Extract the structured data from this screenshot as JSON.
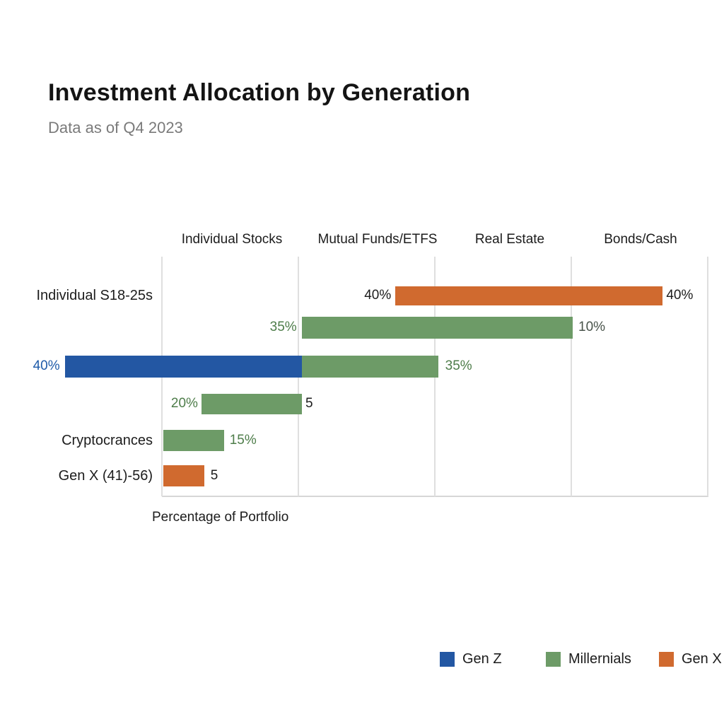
{
  "header": {
    "title": "Investment Allocation by Generation",
    "subtitle": "Data as of Q4 2023"
  },
  "axis": {
    "xlabel": "Percentage of Portfolio"
  },
  "colors": {
    "gen_z_blue": "#2357a3",
    "millennials_green": "#6d9b67",
    "gen_x_orange": "#d06a2f",
    "green_label": "#4e7d4a",
    "blue_label": "#1f5ba9",
    "dark_label": "#1c1c1c",
    "muted_green_label": "#49544b",
    "gridline": "#dfdfdf"
  },
  "legend": {
    "items": [
      {
        "name": "gen-z",
        "label": "Gen Z",
        "color": "#2357a3"
      },
      {
        "name": "millennials",
        "label": "Millernials",
        "color": "#6d9b67"
      },
      {
        "name": "gen-x",
        "label": "Gen X",
        "color": "#d06a2f"
      }
    ]
  },
  "chart_data": {
    "type": "bar",
    "orientation": "horizontal",
    "title": "Investment Allocation by Generation",
    "subtitle": "Data as of Q4 2023",
    "xlabel": "Percentage of Portfolio",
    "grid": true,
    "legend_position": "bottom-right",
    "column_headers": [
      "Individual Stocks",
      "Mutual Funds/ETFS",
      "Real Estate",
      "Bonds/Cash"
    ],
    "legend_entries": [
      "Gen Z",
      "Millernials",
      "Gen X"
    ],
    "axis_units_note": "u is percent of plot width (0-100), gridlines every 25 units; bars do not align to a labeled numeric scale",
    "gridlines_units": [
      0,
      25,
      50,
      75,
      100
    ],
    "rows": [
      {
        "label": "Individual S18-25s",
        "bars": [
          {
            "series": "gen_x",
            "color": "#d06a2f",
            "u0": 42.7,
            "u1": 91.7
          }
        ],
        "value_labels": [
          {
            "text": "40%",
            "u": 42.0,
            "align": "right",
            "color": "#1c1c1c"
          },
          {
            "text": "40%",
            "u": 92.4,
            "align": "left",
            "color": "#1c1c1c"
          }
        ]
      },
      {
        "label": "",
        "bars": [
          {
            "series": "millennials",
            "color": "#6d9b67",
            "u0": 25.6,
            "u1": 75.3
          }
        ],
        "value_labels": [
          {
            "text": "35%",
            "u": 24.7,
            "align": "right",
            "color": "#4e7d4a"
          },
          {
            "text": "10%",
            "u": 76.3,
            "align": "left",
            "color": "#49544b"
          }
        ]
      },
      {
        "label": "",
        "bars": [
          {
            "series": "gen_z",
            "color": "#2357a3",
            "u0": -17.7,
            "u1": 25.6
          },
          {
            "series": "millennials",
            "color": "#6d9b67",
            "u0": 25.6,
            "u1": 50.6
          }
        ],
        "value_labels": [
          {
            "text": "40%",
            "u": -18.7,
            "align": "right",
            "color": "#1f5ba9"
          },
          {
            "text": "35%",
            "u": 51.9,
            "align": "left",
            "color": "#4e7d4a"
          }
        ]
      },
      {
        "label": "",
        "bars": [
          {
            "series": "millennials",
            "color": "#6d9b67",
            "u0": 7.3,
            "u1": 25.6
          }
        ],
        "value_labels": [
          {
            "text": "20%",
            "u": 6.6,
            "align": "right",
            "color": "#4e7d4a"
          },
          {
            "text": "5",
            "u": 26.3,
            "align": "left",
            "color": "#1c1c1c"
          }
        ]
      },
      {
        "label": "Cryptocrances",
        "bars": [
          {
            "series": "millennials",
            "color": "#6d9b67",
            "u0": 0.2,
            "u1": 11.4
          }
        ],
        "value_labels": [
          {
            "text": "15%",
            "u": 12.4,
            "align": "left",
            "color": "#4e7d4a"
          }
        ]
      },
      {
        "label": "Gen X (41)-56)",
        "bars": [
          {
            "series": "gen_x",
            "color": "#d06a2f",
            "u0": 0.2,
            "u1": 7.8
          }
        ],
        "value_labels": [
          {
            "text": "5",
            "u": 8.9,
            "align": "left",
            "color": "#1c1c1c"
          }
        ]
      }
    ]
  }
}
